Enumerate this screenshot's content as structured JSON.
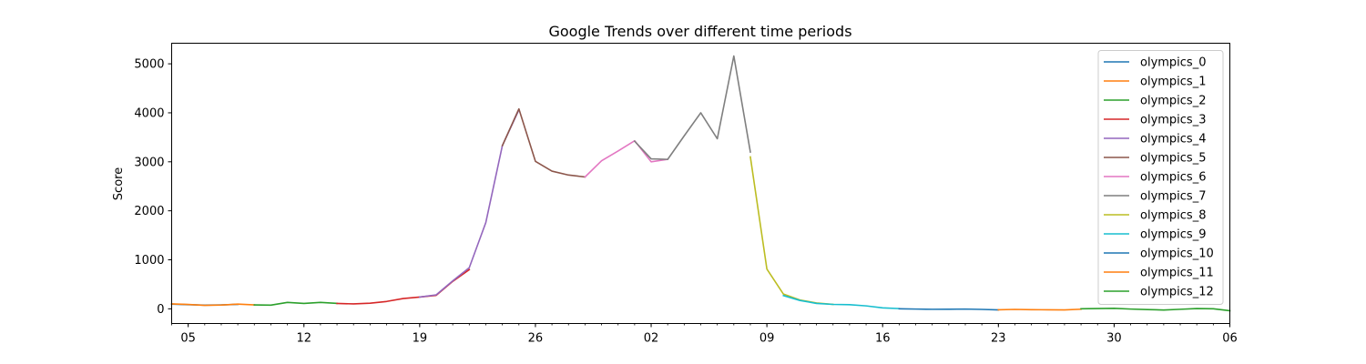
{
  "chart_data": {
    "type": "line",
    "title": "Google Trends over different time periods",
    "xlabel": "",
    "ylabel": "Score",
    "ylim": [
      -300,
      5420
    ],
    "y_ticks": [
      0,
      1000,
      2000,
      3000,
      4000,
      5000
    ],
    "x_range": [
      "2024-07-04",
      "2024-09-06"
    ],
    "x_ticks": [
      {
        "date": "2024-07-05",
        "label": "05"
      },
      {
        "date": "2024-07-12",
        "label": "12"
      },
      {
        "date": "2024-07-19",
        "label": "19"
      },
      {
        "date": "2024-07-26",
        "label": "26"
      },
      {
        "date": "2024-08-02",
        "label": "02"
      },
      {
        "date": "2024-08-09",
        "label": "09"
      },
      {
        "date": "2024-08-16",
        "label": "16"
      },
      {
        "date": "2024-08-23",
        "label": "23"
      },
      {
        "date": "2024-08-30",
        "label": "30"
      },
      {
        "date": "2024-09-06",
        "label": "06"
      }
    ],
    "grid": false,
    "legend_position": "top-right",
    "series": [
      {
        "name": "olympics_0",
        "color": "#1f77b4",
        "points": [
          {
            "x": "2024-07-04",
            "y": 95
          },
          {
            "x": "2024-07-05",
            "y": 85
          },
          {
            "x": "2024-07-06",
            "y": 75
          },
          {
            "x": "2024-07-07",
            "y": 80
          },
          {
            "x": "2024-07-08",
            "y": 90
          }
        ]
      },
      {
        "name": "olympics_1",
        "color": "#ff7f0e",
        "points": [
          {
            "x": "2024-07-04",
            "y": 100
          },
          {
            "x": "2024-07-05",
            "y": 88
          },
          {
            "x": "2024-07-06",
            "y": 70
          },
          {
            "x": "2024-07-07",
            "y": 78
          },
          {
            "x": "2024-07-08",
            "y": 95
          },
          {
            "x": "2024-07-09",
            "y": 80
          }
        ]
      },
      {
        "name": "olympics_2",
        "color": "#2ca02c",
        "points": [
          {
            "x": "2024-07-09",
            "y": 80
          },
          {
            "x": "2024-07-10",
            "y": 75
          },
          {
            "x": "2024-07-11",
            "y": 130
          },
          {
            "x": "2024-07-12",
            "y": 110
          },
          {
            "x": "2024-07-13",
            "y": 130
          },
          {
            "x": "2024-07-14",
            "y": 110
          }
        ]
      },
      {
        "name": "olympics_3",
        "color": "#d62728",
        "points": [
          {
            "x": "2024-07-14",
            "y": 110
          },
          {
            "x": "2024-07-15",
            "y": 100
          },
          {
            "x": "2024-07-16",
            "y": 115
          },
          {
            "x": "2024-07-17",
            "y": 150
          },
          {
            "x": "2024-07-18",
            "y": 210
          },
          {
            "x": "2024-07-19",
            "y": 240
          },
          {
            "x": "2024-07-20",
            "y": 275
          },
          {
            "x": "2024-07-21",
            "y": 560
          },
          {
            "x": "2024-07-22",
            "y": 800
          }
        ]
      },
      {
        "name": "olympics_4",
        "color": "#9467bd",
        "points": [
          {
            "x": "2024-07-19",
            "y": 240
          },
          {
            "x": "2024-07-20",
            "y": 285
          },
          {
            "x": "2024-07-21",
            "y": 570
          },
          {
            "x": "2024-07-22",
            "y": 840
          },
          {
            "x": "2024-07-23",
            "y": 1760
          },
          {
            "x": "2024-07-24",
            "y": 3330
          },
          {
            "x": "2024-07-25",
            "y": 4060
          }
        ]
      },
      {
        "name": "olympics_5",
        "color": "#8c564b",
        "points": [
          {
            "x": "2024-07-24",
            "y": 3330
          },
          {
            "x": "2024-07-25",
            "y": 4080
          },
          {
            "x": "2024-07-26",
            "y": 3010
          },
          {
            "x": "2024-07-27",
            "y": 2810
          },
          {
            "x": "2024-07-28",
            "y": 2730
          },
          {
            "x": "2024-07-29",
            "y": 2690
          }
        ]
      },
      {
        "name": "olympics_6",
        "color": "#e377c2",
        "points": [
          {
            "x": "2024-07-29",
            "y": 2690
          },
          {
            "x": "2024-07-30",
            "y": 3020
          },
          {
            "x": "2024-07-31",
            "y": 3220
          },
          {
            "x": "2024-08-01",
            "y": 3430
          },
          {
            "x": "2024-08-02",
            "y": 3000
          },
          {
            "x": "2024-08-03",
            "y": 3050
          }
        ]
      },
      {
        "name": "olympics_7",
        "color": "#7f7f7f",
        "points": [
          {
            "x": "2024-08-01",
            "y": 3420
          },
          {
            "x": "2024-08-02",
            "y": 3060
          },
          {
            "x": "2024-08-03",
            "y": 3050
          },
          {
            "x": "2024-08-04",
            "y": 3530
          },
          {
            "x": "2024-08-05",
            "y": 4000
          },
          {
            "x": "2024-08-06",
            "y": 3470
          },
          {
            "x": "2024-08-07",
            "y": 5160
          },
          {
            "x": "2024-08-08",
            "y": 3200
          }
        ]
      },
      {
        "name": "olympics_8",
        "color": "#bcbd22",
        "points": [
          {
            "x": "2024-08-08",
            "y": 3100
          },
          {
            "x": "2024-08-09",
            "y": 810
          },
          {
            "x": "2024-08-10",
            "y": 300
          },
          {
            "x": "2024-08-11",
            "y": 180
          },
          {
            "x": "2024-08-12",
            "y": 120
          },
          {
            "x": "2024-08-13",
            "y": 90
          }
        ]
      },
      {
        "name": "olympics_9",
        "color": "#17becf",
        "points": [
          {
            "x": "2024-08-10",
            "y": 270
          },
          {
            "x": "2024-08-11",
            "y": 170
          },
          {
            "x": "2024-08-12",
            "y": 110
          },
          {
            "x": "2024-08-13",
            "y": 90
          },
          {
            "x": "2024-08-14",
            "y": 85
          },
          {
            "x": "2024-08-15",
            "y": 60
          },
          {
            "x": "2024-08-16",
            "y": 20
          },
          {
            "x": "2024-08-17",
            "y": 5
          }
        ]
      },
      {
        "name": "olympics_10",
        "color": "#1f77b4",
        "points": [
          {
            "x": "2024-08-17",
            "y": 0
          },
          {
            "x": "2024-08-18",
            "y": -5
          },
          {
            "x": "2024-08-19",
            "y": -10
          },
          {
            "x": "2024-08-20",
            "y": -8
          },
          {
            "x": "2024-08-21",
            "y": -5
          },
          {
            "x": "2024-08-22",
            "y": -12
          },
          {
            "x": "2024-08-23",
            "y": -22
          }
        ]
      },
      {
        "name": "olympics_11",
        "color": "#ff7f0e",
        "points": [
          {
            "x": "2024-08-23",
            "y": -20
          },
          {
            "x": "2024-08-24",
            "y": -12
          },
          {
            "x": "2024-08-25",
            "y": -18
          },
          {
            "x": "2024-08-26",
            "y": -20
          },
          {
            "x": "2024-08-27",
            "y": -22
          },
          {
            "x": "2024-08-28",
            "y": -8
          }
        ]
      },
      {
        "name": "olympics_12",
        "color": "#2ca02c",
        "points": [
          {
            "x": "2024-08-28",
            "y": 0
          },
          {
            "x": "2024-08-29",
            "y": 5
          },
          {
            "x": "2024-08-30",
            "y": 10
          },
          {
            "x": "2024-08-31",
            "y": -5
          },
          {
            "x": "2024-09-01",
            "y": -15
          },
          {
            "x": "2024-09-02",
            "y": -25
          },
          {
            "x": "2024-09-03",
            "y": -10
          },
          {
            "x": "2024-09-04",
            "y": 5
          },
          {
            "x": "2024-09-05",
            "y": 0
          },
          {
            "x": "2024-09-06",
            "y": -40
          }
        ]
      }
    ]
  }
}
